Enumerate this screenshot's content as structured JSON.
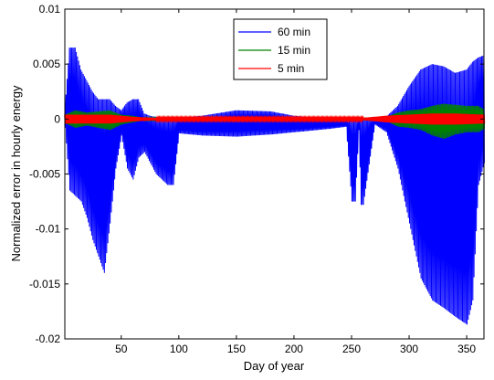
{
  "chart_data": {
    "type": "line",
    "title": "",
    "xlabel": "Day of year",
    "ylabel": "Normalized error in hourly energy",
    "xlim": [
      1,
      365
    ],
    "ylim": [
      -0.02,
      0.01
    ],
    "xticks": [
      50,
      100,
      150,
      200,
      250,
      300,
      350
    ],
    "yticks": [
      -0.02,
      -0.015,
      -0.01,
      -0.005,
      0,
      0.005,
      0.01
    ],
    "ytick_labels": [
      "-0.02",
      "-0.015",
      "-0.01",
      "-0.005",
      "0",
      "0.005",
      "0.01"
    ],
    "grid": false,
    "legend_position": "top-center",
    "series": [
      {
        "name": "60 min",
        "color": "#0000ff",
        "envelope_days": [
          1,
          5,
          10,
          15,
          20,
          25,
          30,
          35,
          40,
          45,
          50,
          55,
          60,
          65,
          70,
          75,
          80,
          85,
          90,
          95,
          100,
          120,
          150,
          180,
          200,
          210,
          230,
          245,
          250,
          253,
          256,
          258,
          260,
          270,
          280,
          290,
          300,
          310,
          320,
          330,
          340,
          350,
          355,
          360,
          365
        ],
        "upper": [
          0.0008,
          0.0065,
          0.0065,
          0.0045,
          0.0035,
          0.0025,
          0.0018,
          0.0018,
          0.0018,
          0.0012,
          0.0008,
          0.0015,
          0.0018,
          0.0018,
          0.0005,
          0.0003,
          0.0002,
          0.0001,
          0.0001,
          0.0001,
          0.0001,
          0.0003,
          0.0008,
          0.0007,
          0.0003,
          0.0002,
          0.0001,
          0.0001,
          0.0001,
          0.0001,
          0.0001,
          0.0001,
          0.0001,
          0.0001,
          0.0002,
          0.0012,
          0.003,
          0.0045,
          0.005,
          0.0048,
          0.0042,
          0.0045,
          0.0052,
          0.0056,
          0.0058
        ],
        "lower": [
          -0.0008,
          -0.0065,
          -0.007,
          -0.0075,
          -0.009,
          -0.011,
          -0.0125,
          -0.014,
          -0.0095,
          -0.0045,
          -0.0015,
          -0.0045,
          -0.0055,
          -0.0035,
          -0.003,
          -0.004,
          -0.005,
          -0.0055,
          -0.006,
          -0.006,
          -0.0013,
          -0.0015,
          -0.0016,
          -0.0014,
          -0.0012,
          -0.0011,
          -0.0009,
          -0.0007,
          -0.0075,
          -0.0075,
          -0.001,
          -0.0078,
          -0.0078,
          -0.0005,
          -0.0012,
          -0.0045,
          -0.0095,
          -0.0145,
          -0.0165,
          -0.0172,
          -0.018,
          -0.0187,
          -0.0165,
          -0.006,
          -0.004
        ]
      },
      {
        "name": "15 min",
        "color": "#008000",
        "envelope_days": [
          1,
          10,
          20,
          30,
          40,
          50,
          60,
          70,
          80,
          100,
          150,
          200,
          250,
          280,
          290,
          300,
          310,
          320,
          330,
          340,
          350,
          360,
          365
        ],
        "upper": [
          0.0004,
          0.0008,
          0.0006,
          0.0007,
          0.0008,
          0.0004,
          0.0003,
          0.0001,
          0.0001,
          0.0001,
          0.0001,
          0.0001,
          0.0001,
          0.0002,
          0.0006,
          0.0008,
          0.0009,
          0.0012,
          0.0014,
          0.0013,
          0.0012,
          0.0012,
          0.0009
        ],
        "lower": [
          -0.0004,
          -0.0008,
          -0.0006,
          -0.0008,
          -0.001,
          -0.0005,
          -0.0003,
          -0.0001,
          -0.0001,
          -0.0001,
          -0.0001,
          -0.0001,
          -0.0001,
          -0.0002,
          -0.0007,
          -0.0008,
          -0.001,
          -0.0015,
          -0.0018,
          -0.0014,
          -0.0012,
          -0.0012,
          -0.0009
        ]
      },
      {
        "name": "5 min",
        "color": "#ff0000",
        "envelope_days": [
          1,
          20,
          40,
          60,
          80,
          100,
          200,
          260,
          280,
          300,
          320,
          340,
          365
        ],
        "upper": [
          0.0004,
          0.0004,
          0.0004,
          0.0002,
          0.0001,
          0.0001,
          0.0001,
          0.0001,
          0.0003,
          0.0004,
          0.0005,
          0.0005,
          0.0004
        ],
        "lower": [
          -0.0004,
          -0.0004,
          -0.0004,
          -0.0002,
          -0.0001,
          -0.0001,
          -0.0001,
          -0.0001,
          -0.0003,
          -0.0004,
          -0.0005,
          -0.0005,
          -0.0004
        ]
      }
    ]
  }
}
